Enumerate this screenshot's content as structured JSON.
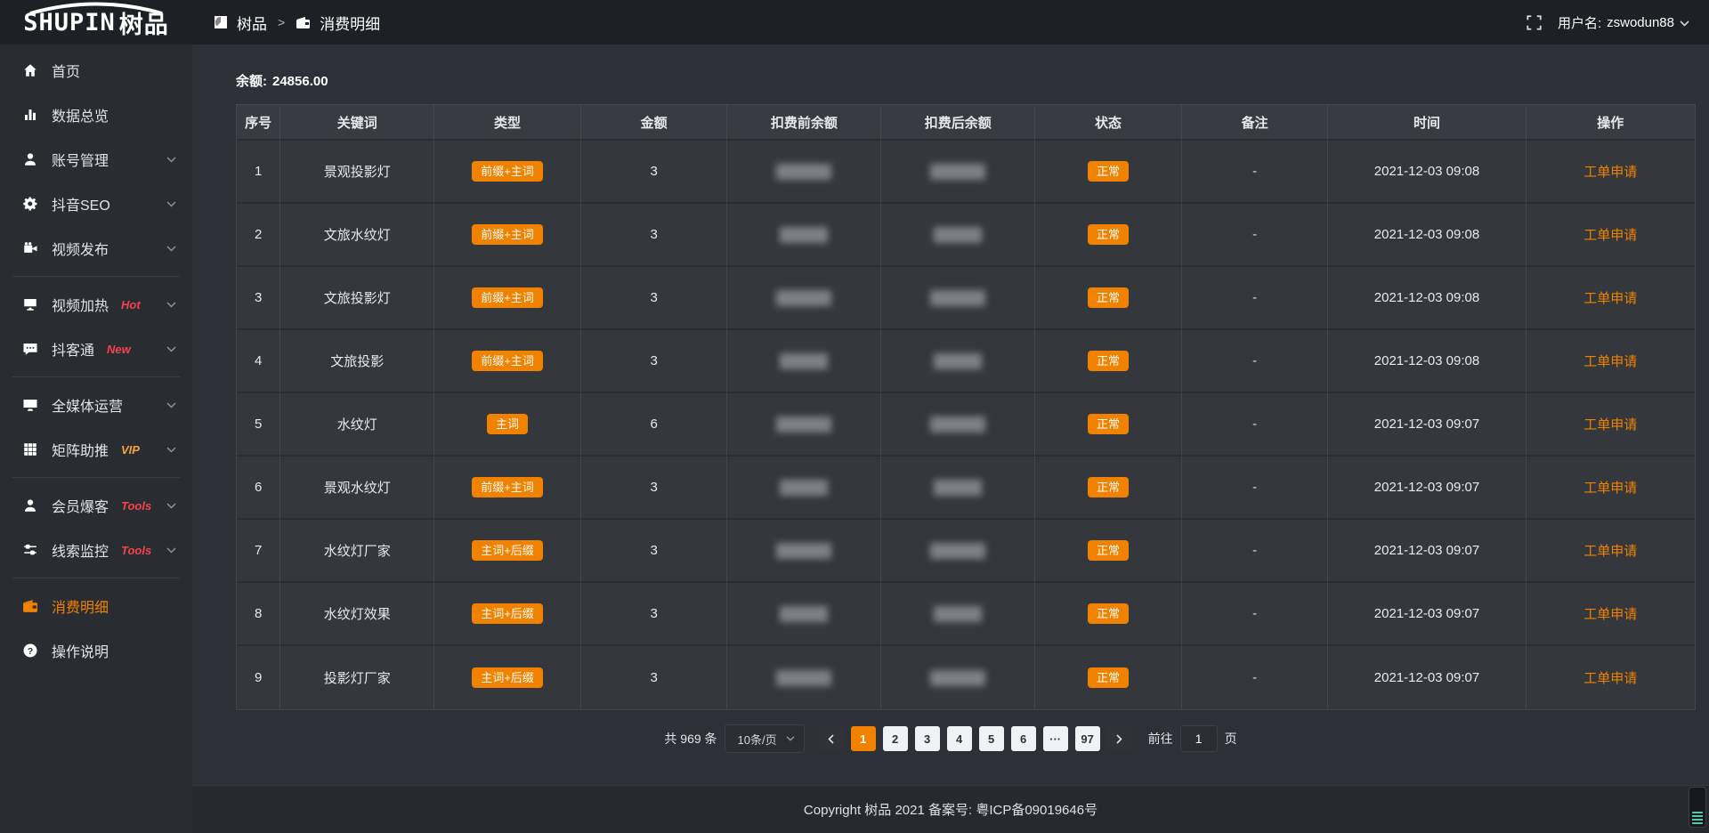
{
  "app": {
    "logo_en": "SHUPIN",
    "logo_cn": "树品"
  },
  "topbar": {
    "breadcrumb_home": "树品",
    "breadcrumb_separator": ">",
    "breadcrumb_current": "消费明细",
    "username_label": "用户名:",
    "username": "zswodun88"
  },
  "sidebar": {
    "items": [
      {
        "name": "home",
        "label": "首页",
        "icon": "home-icon"
      },
      {
        "name": "data-overview",
        "label": "数据总览",
        "icon": "bar-chart-icon"
      },
      {
        "name": "account-management",
        "label": "账号管理",
        "icon": "user-icon",
        "chevron": true
      },
      {
        "name": "douyin-seo",
        "label": "抖音SEO",
        "icon": "gear-icon",
        "chevron": true
      },
      {
        "name": "video-publish",
        "label": "视频发布",
        "icon": "video-icon",
        "chevron": true
      },
      {
        "divider": true
      },
      {
        "name": "video-heat",
        "label": "视频加热",
        "icon": "tv-icon",
        "tag": "Hot",
        "tag_color": "#f5434f",
        "chevron": true
      },
      {
        "name": "douketong",
        "label": "抖客通",
        "icon": "chat-icon",
        "tag": "New",
        "tag_color": "#f5434f",
        "chevron": true
      },
      {
        "divider": true
      },
      {
        "name": "all-media-operation",
        "label": "全媒体运营",
        "icon": "monitor-icon",
        "chevron": true
      },
      {
        "name": "matrix-boost",
        "label": "矩阵助推",
        "icon": "grid-icon",
        "tag": "VIP",
        "tag_color": "#f0a63c",
        "chevron": true
      },
      {
        "divider": true
      },
      {
        "name": "member-baoke",
        "label": "会员爆客",
        "icon": "member-icon",
        "tag": "Tools",
        "tag_color": "#f5434f",
        "chevron": true
      },
      {
        "name": "clue-monitor",
        "label": "线索监控",
        "icon": "sliders-icon",
        "tag": "Tools",
        "tag_color": "#f5434f",
        "chevron": true
      },
      {
        "divider": true
      },
      {
        "name": "consume-detail",
        "label": "消费明细",
        "icon": "wallet-icon",
        "active": true
      },
      {
        "name": "operation-guide",
        "label": "操作说明",
        "icon": "question-icon"
      }
    ]
  },
  "main": {
    "balance_label": "余额:",
    "balance_value": "24856.00",
    "table": {
      "columns": [
        "序号",
        "关键词",
        "类型",
        "金额",
        "扣费前余额",
        "扣费后余额",
        "状态",
        "备注",
        "时间",
        "操作"
      ],
      "rows": [
        {
          "index": "1",
          "keyword": "景观投影灯",
          "type": "前缀+主词",
          "amount": "3",
          "pre_balance_masked": true,
          "post_balance_masked": true,
          "status": "正常",
          "remark": "-",
          "time": "2021-12-03 09:08",
          "action": "工单申请"
        },
        {
          "index": "2",
          "keyword": "文旅水纹灯",
          "type": "前缀+主词",
          "amount": "3",
          "pre_balance_masked": true,
          "post_balance_masked": true,
          "status": "正常",
          "remark": "-",
          "time": "2021-12-03 09:08",
          "action": "工单申请"
        },
        {
          "index": "3",
          "keyword": "文旅投影灯",
          "type": "前缀+主词",
          "amount": "3",
          "pre_balance_masked": true,
          "post_balance_masked": true,
          "status": "正常",
          "remark": "-",
          "time": "2021-12-03 09:08",
          "action": "工单申请"
        },
        {
          "index": "4",
          "keyword": "文旅投影",
          "type": "前缀+主词",
          "amount": "3",
          "pre_balance_masked": true,
          "post_balance_masked": true,
          "status": "正常",
          "remark": "-",
          "time": "2021-12-03 09:08",
          "action": "工单申请"
        },
        {
          "index": "5",
          "keyword": "水纹灯",
          "type": "主词",
          "amount": "6",
          "pre_balance_masked": true,
          "post_balance_masked": true,
          "status": "正常",
          "remark": "-",
          "time": "2021-12-03 09:07",
          "action": "工单申请"
        },
        {
          "index": "6",
          "keyword": "景观水纹灯",
          "type": "前缀+主词",
          "amount": "3",
          "pre_balance_masked": true,
          "post_balance_masked": true,
          "status": "正常",
          "remark": "-",
          "time": "2021-12-03 09:07",
          "action": "工单申请"
        },
        {
          "index": "7",
          "keyword": "水纹灯厂家",
          "type": "主词+后缀",
          "amount": "3",
          "pre_balance_masked": true,
          "post_balance_masked": true,
          "status": "正常",
          "remark": "-",
          "time": "2021-12-03 09:07",
          "action": "工单申请"
        },
        {
          "index": "8",
          "keyword": "水纹灯效果",
          "type": "主词+后缀",
          "amount": "3",
          "pre_balance_masked": true,
          "post_balance_masked": true,
          "status": "正常",
          "remark": "-",
          "time": "2021-12-03 09:07",
          "action": "工单申请"
        },
        {
          "index": "9",
          "keyword": "投影灯厂家",
          "type": "主词+后缀",
          "amount": "3",
          "pre_balance_masked": true,
          "post_balance_masked": true,
          "status": "正常",
          "remark": "-",
          "time": "2021-12-03 09:07",
          "action": "工单申请"
        }
      ]
    },
    "pagination": {
      "total": "共 969 条",
      "page_size": "10条/页",
      "prev_icon": "chevron-left-icon",
      "next_icon": "chevron-right-icon",
      "pages": [
        "1",
        "2",
        "3",
        "4",
        "5",
        "6",
        "···",
        "97"
      ],
      "active_page": "1",
      "goto_label": "前往",
      "goto_value": "1",
      "goto_unit": "页"
    }
  },
  "footer": {
    "copyright": "Copyright 树品 2021 备案号: 粤ICP备09019646号"
  },
  "colors": {
    "accent_orange": "#f08200",
    "tag_red": "#f5434f",
    "tag_gold": "#f0a63c",
    "topbar_bg": "#1d2024",
    "sidebar_bg": "#292c31",
    "content_bg": "#2d3037",
    "table_bg": "#34373c"
  }
}
